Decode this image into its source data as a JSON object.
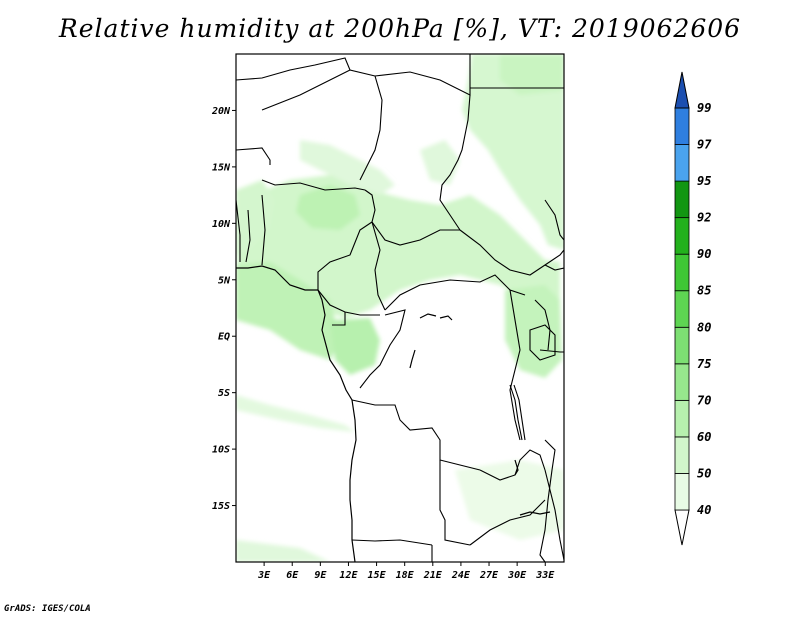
{
  "title": "Relative humidity at 200hPa [%], VT: 2019062606",
  "credit": "GrADS: IGES/COLA",
  "map": {
    "lon_range": [
      0,
      35
    ],
    "lat_range": [
      -20,
      25
    ],
    "lat_ticks": [
      {
        "value": 20,
        "label": "20N"
      },
      {
        "value": 15,
        "label": "15N"
      },
      {
        "value": 10,
        "label": "10N"
      },
      {
        "value": 5,
        "label": "5N"
      },
      {
        "value": 0,
        "label": "EQ"
      },
      {
        "value": -5,
        "label": "5S"
      },
      {
        "value": -10,
        "label": "10S"
      },
      {
        "value": -15,
        "label": "15S"
      }
    ],
    "lon_ticks": [
      {
        "value": 3,
        "label": "3E"
      },
      {
        "value": 6,
        "label": "6E"
      },
      {
        "value": 9,
        "label": "9E"
      },
      {
        "value": 12,
        "label": "12E"
      },
      {
        "value": 15,
        "label": "15E"
      },
      {
        "value": 18,
        "label": "18E"
      },
      {
        "value": 21,
        "label": "21E"
      },
      {
        "value": 24,
        "label": "24E"
      },
      {
        "value": 27,
        "label": "27E"
      },
      {
        "value": 30,
        "label": "30E"
      },
      {
        "value": 33,
        "label": "33E"
      }
    ]
  },
  "colorbar": {
    "levels": [
      {
        "label": "40",
        "color": "#e8fbe5"
      },
      {
        "label": "50",
        "color": "#d2f6cb"
      },
      {
        "label": "60",
        "color": "#b7f0ae"
      },
      {
        "label": "70",
        "color": "#97e78d"
      },
      {
        "label": "75",
        "color": "#7ddf73"
      },
      {
        "label": "80",
        "color": "#5ed552"
      },
      {
        "label": "85",
        "color": "#3fc735"
      },
      {
        "label": "90",
        "color": "#23b11c"
      },
      {
        "label": "92",
        "color": "#129612"
      },
      {
        "label": "95",
        "color": "#4aa3ee"
      },
      {
        "label": "97",
        "color": "#2f7fe0"
      },
      {
        "label": "99",
        "color": "#1f5fc4"
      }
    ],
    "under_color": "#ffffff",
    "over_color": "#1c4fb0"
  }
}
